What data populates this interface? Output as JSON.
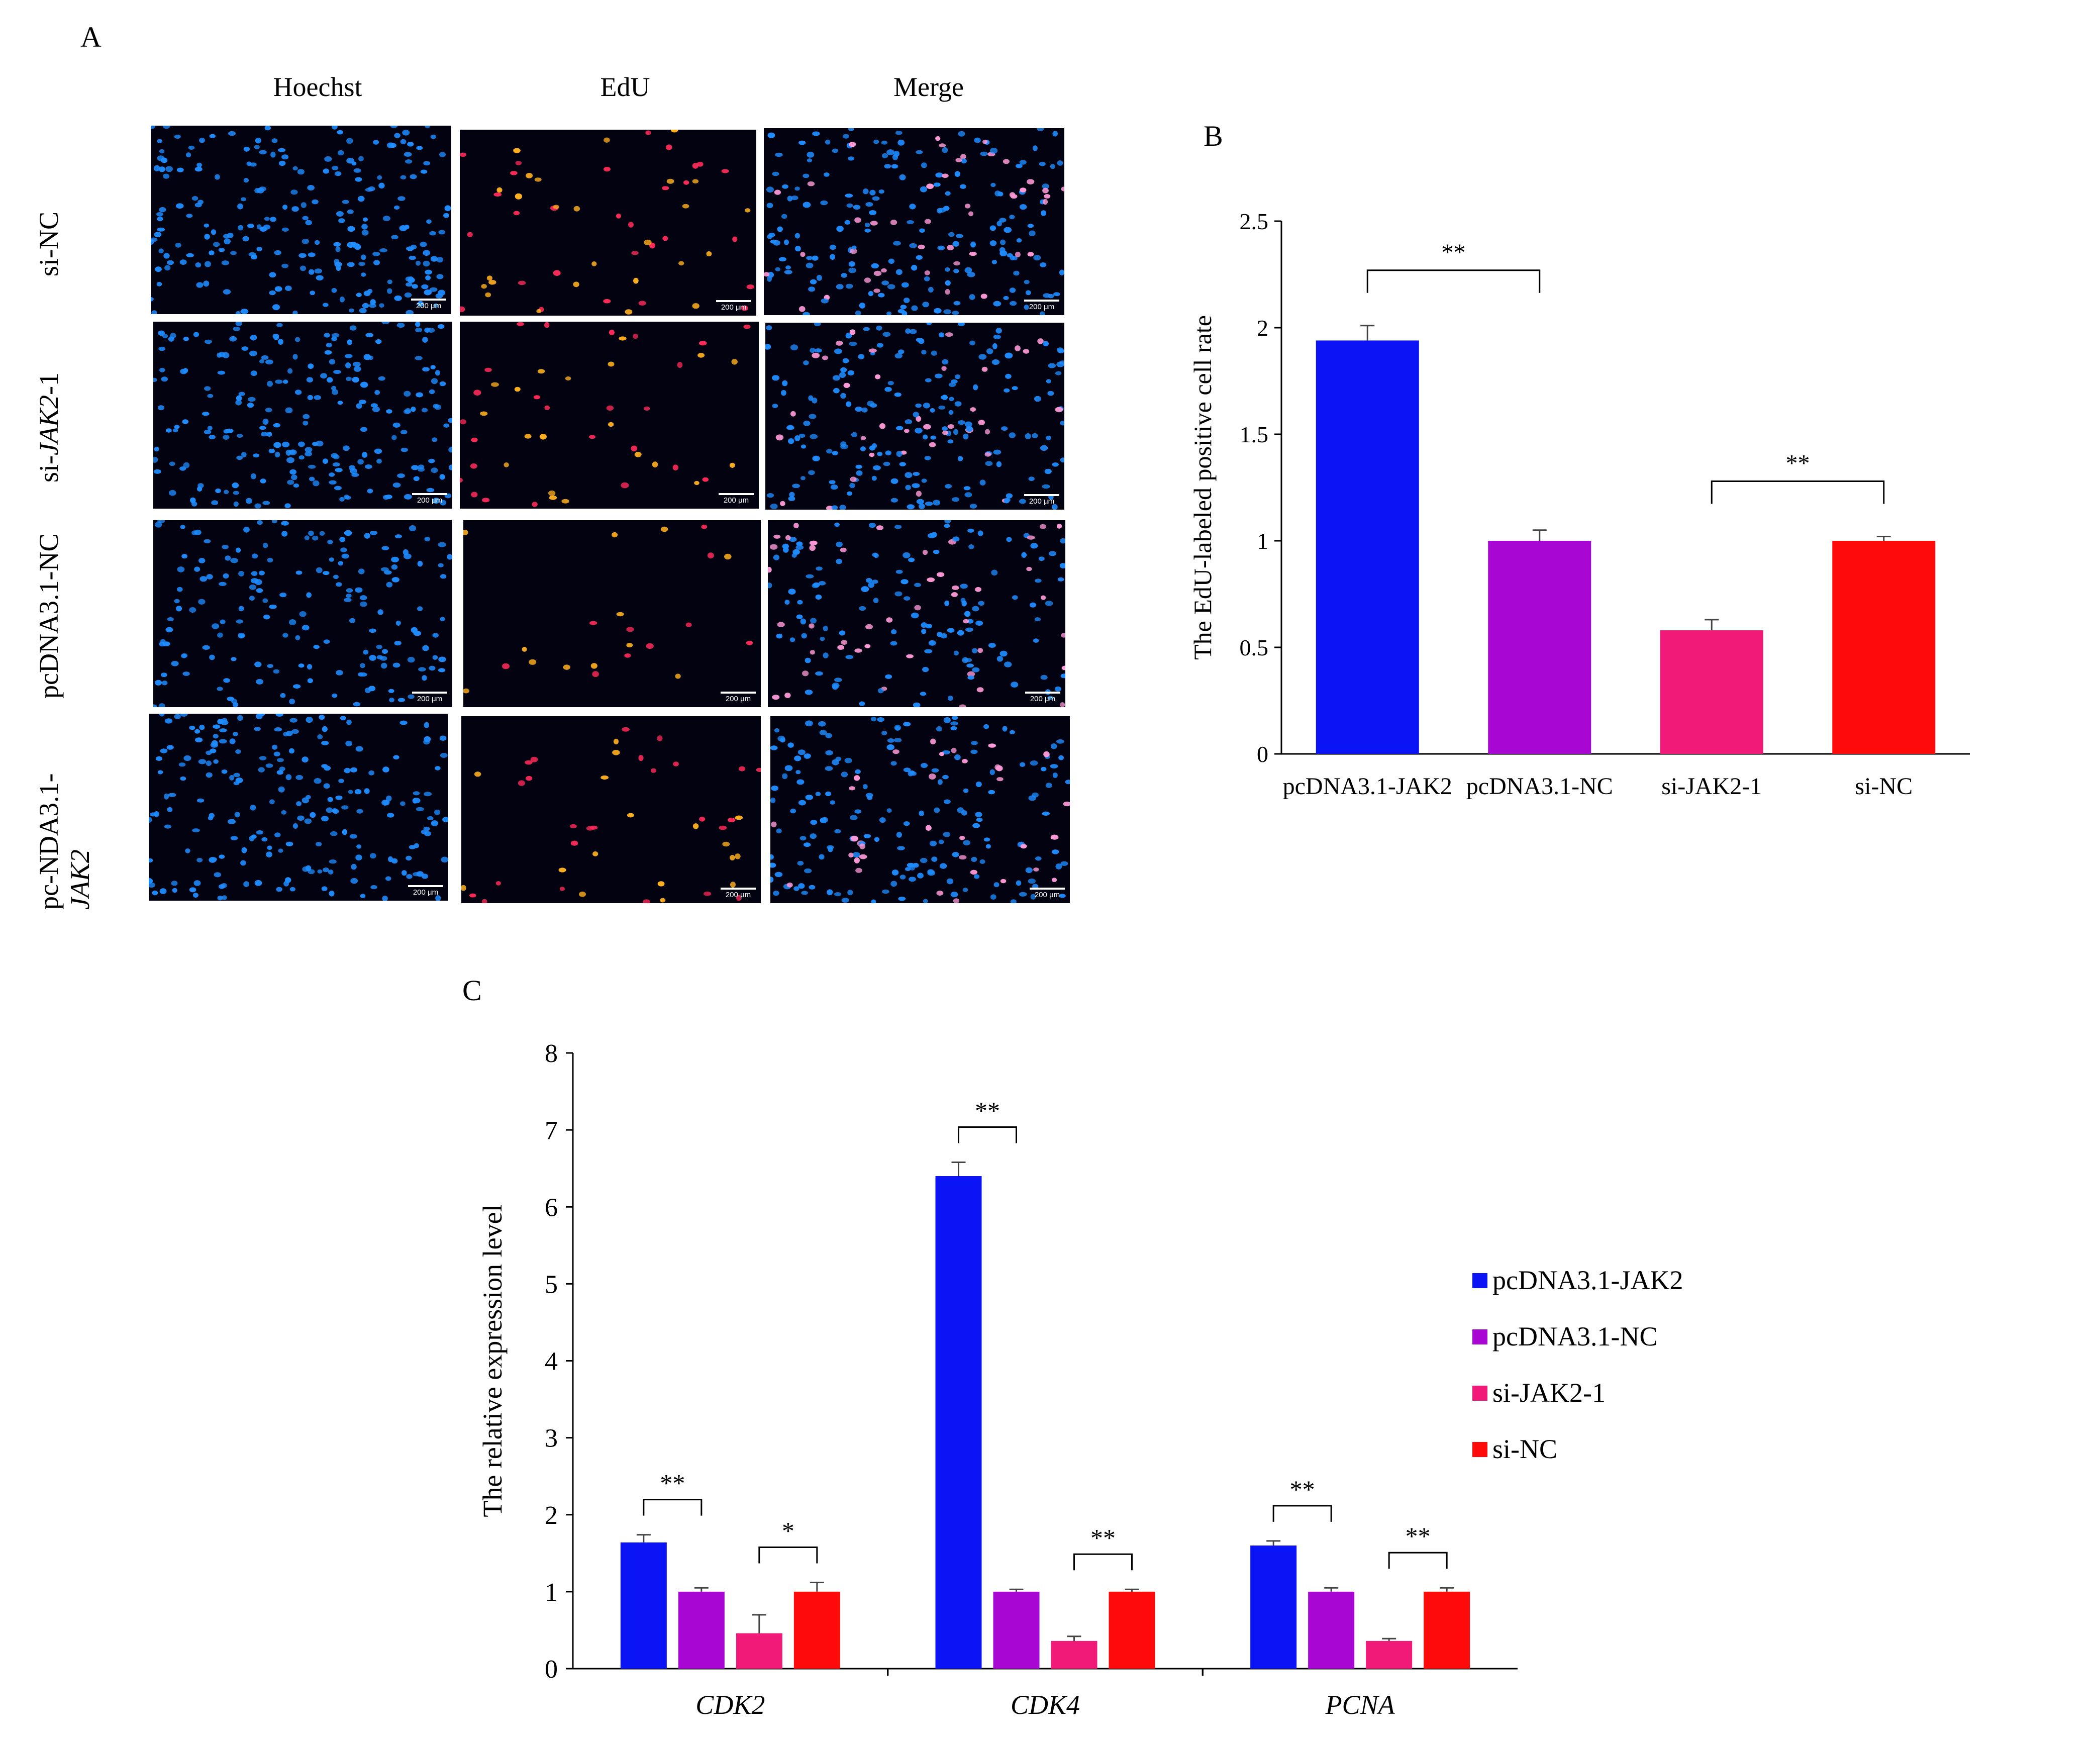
{
  "panel_a": {
    "letter": "A",
    "columns": [
      "Hoechst",
      "EdU",
      "Merge"
    ],
    "rows": [
      {
        "label": "si-NC"
      },
      {
        "label_prefix": "si-",
        "label_italic": "JAK2",
        "label_suffix": "-1"
      },
      {
        "label": "pcDNA3.1-NC"
      },
      {
        "label_line1": "pc-NDA3.1-",
        "label_line2": "JAK2"
      }
    ],
    "scale_bar": "200 μm",
    "colors": {
      "hoechst": "#1e8cff",
      "edu": "#ff2a5a",
      "edu_bright": "#ffb020",
      "background": "#020210"
    }
  },
  "chart_data": [
    {
      "panel": "B",
      "type": "bar",
      "title": "",
      "xlabel": "",
      "ylabel": "The EdU-labeled positive cell rate",
      "categories": [
        "pcDNA3.1-JAK2",
        "pcDNA3.1-NC",
        "si-JAK2-1",
        "si-NC"
      ],
      "values": [
        1.94,
        1.0,
        0.58,
        1.0
      ],
      "errors": [
        0.07,
        0.05,
        0.05,
        0.02
      ],
      "colors": [
        "#0a14f5",
        "#a806d3",
        "#f21a78",
        "#ff0a0a"
      ],
      "ylim": [
        0,
        2.5
      ],
      "yticks": [
        0,
        0.5,
        1,
        1.5,
        2,
        2.5
      ],
      "ytick_labels": [
        "0",
        "0.5",
        "1",
        "1.5",
        "2",
        "2.5"
      ],
      "significance": [
        {
          "from": 0,
          "to": 1,
          "label": "**"
        },
        {
          "from": 2,
          "to": 3,
          "label": "**"
        }
      ]
    },
    {
      "panel": "C",
      "type": "bar",
      "title": "",
      "xlabel": "",
      "ylabel": "The relative expression level",
      "categories": [
        "CDK2",
        "CDK4",
        "PCNA"
      ],
      "series": [
        {
          "name": "pcDNA3.1-JAK2",
          "values": [
            1.64,
            6.4,
            1.6
          ],
          "errors": [
            0.1,
            0.18,
            0.06
          ],
          "color": "#0a14f5"
        },
        {
          "name": "pcDNA3.1-NC",
          "values": [
            1.0,
            1.0,
            1.0
          ],
          "errors": [
            0.05,
            0.03,
            0.05
          ],
          "color": "#a806d3"
        },
        {
          "name": "si-JAK2-1",
          "values": [
            0.46,
            0.36,
            0.36
          ],
          "errors": [
            0.24,
            0.06,
            0.03
          ],
          "color": "#f21a78"
        },
        {
          "name": "si-NC",
          "values": [
            1.0,
            1.0,
            1.0
          ],
          "errors": [
            0.12,
            0.03,
            0.05
          ],
          "color": "#ff0a0a"
        }
      ],
      "ylim": [
        0,
        8
      ],
      "yticks": [
        0,
        1,
        2,
        3,
        4,
        5,
        6,
        7,
        8
      ],
      "ytick_labels": [
        "0",
        "1",
        "2",
        "3",
        "4",
        "5",
        "6",
        "7",
        "8"
      ],
      "legend_position": "right",
      "significance": [
        {
          "category": 0,
          "from": 0,
          "to": 1,
          "label": "**"
        },
        {
          "category": 0,
          "from": 2,
          "to": 3,
          "label": "*"
        },
        {
          "category": 1,
          "from": 0,
          "to": 1,
          "label": "**"
        },
        {
          "category": 1,
          "from": 2,
          "to": 3,
          "label": "**"
        },
        {
          "category": 2,
          "from": 0,
          "to": 1,
          "label": "**"
        },
        {
          "category": 2,
          "from": 2,
          "to": 3,
          "label": "**"
        }
      ]
    }
  ]
}
